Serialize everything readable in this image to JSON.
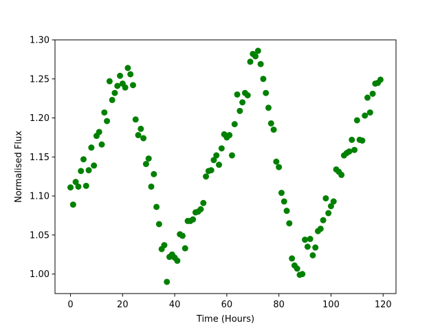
{
  "chart_data": {
    "type": "scatter",
    "title": "",
    "xlabel": "Time (Hours)",
    "ylabel": "Normalised Flux",
    "xlim": [
      -5.95,
      124.95
    ],
    "ylim": [
      0.975,
      1.3
    ],
    "xticks": [
      0,
      20,
      40,
      60,
      80,
      100,
      120
    ],
    "xtick_labels": [
      "0",
      "20",
      "40",
      "60",
      "80",
      "100",
      "120"
    ],
    "yticks": [
      1.0,
      1.05,
      1.1,
      1.15,
      1.2,
      1.25,
      1.3
    ],
    "ytick_labels": [
      "1.00",
      "1.05",
      "1.10",
      "1.15",
      "1.20",
      "1.25",
      "1.30"
    ],
    "grid": false,
    "legend": "none",
    "marker_color": "#008000",
    "series": [
      {
        "x": [
          0,
          1,
          2,
          3,
          4,
          5,
          6,
          7,
          8,
          9,
          10,
          11,
          12,
          13,
          14,
          15,
          16,
          17,
          18,
          19,
          20,
          21,
          22,
          23,
          24,
          25,
          26,
          27,
          28,
          29,
          30,
          31,
          32,
          33,
          34,
          35,
          36,
          37,
          38,
          39,
          40,
          41,
          42,
          43,
          44,
          45,
          46,
          47,
          48,
          49,
          50,
          51,
          52,
          53,
          54,
          55,
          56,
          57,
          58,
          59,
          60,
          61,
          62,
          63,
          64,
          65,
          66,
          67,
          68,
          69,
          70,
          71,
          72,
          73,
          74,
          75,
          76,
          77,
          78,
          79,
          80,
          81,
          82,
          83,
          84,
          85,
          86,
          87,
          88,
          89,
          90,
          91,
          92,
          93,
          94,
          95,
          96,
          97,
          98,
          99,
          100,
          101,
          102,
          103,
          104,
          105,
          106,
          107,
          108,
          109,
          110,
          111,
          112,
          113,
          114,
          115,
          116,
          117,
          118,
          119
        ],
        "y": [
          1.111,
          1.089,
          1.118,
          1.112,
          1.132,
          1.147,
          1.113,
          1.133,
          1.162,
          1.139,
          1.177,
          1.182,
          1.166,
          1.207,
          1.196,
          1.247,
          1.223,
          1.232,
          1.241,
          1.254,
          1.244,
          1.239,
          1.264,
          1.256,
          1.242,
          1.198,
          1.178,
          1.186,
          1.174,
          1.141,
          1.148,
          1.112,
          1.128,
          1.086,
          1.064,
          1.032,
          1.037,
          0.99,
          1.022,
          1.025,
          1.021,
          1.017,
          1.051,
          1.049,
          1.033,
          1.068,
          1.068,
          1.07,
          1.079,
          1.08,
          1.083,
          1.091,
          1.125,
          1.132,
          1.133,
          1.146,
          1.152,
          1.14,
          1.161,
          1.179,
          1.175,
          1.178,
          1.152,
          1.192,
          1.23,
          1.209,
          1.22,
          1.232,
          1.229,
          1.272,
          1.282,
          1.279,
          1.286,
          1.269,
          1.25,
          1.232,
          1.213,
          1.193,
          1.185,
          1.144,
          1.137,
          1.104,
          1.093,
          1.081,
          1.065,
          1.02,
          1.011,
          1.007,
          0.999,
          1.0,
          1.044,
          1.035,
          1.045,
          1.024,
          1.034,
          1.055,
          1.058,
          1.069,
          1.097,
          1.078,
          1.087,
          1.093,
          1.134,
          1.131,
          1.127,
          1.152,
          1.155,
          1.157,
          1.172,
          1.159,
          1.197,
          1.172,
          1.171,
          1.203,
          1.226,
          1.207,
          1.231,
          1.244,
          1.245,
          1.249
        ]
      }
    ]
  }
}
